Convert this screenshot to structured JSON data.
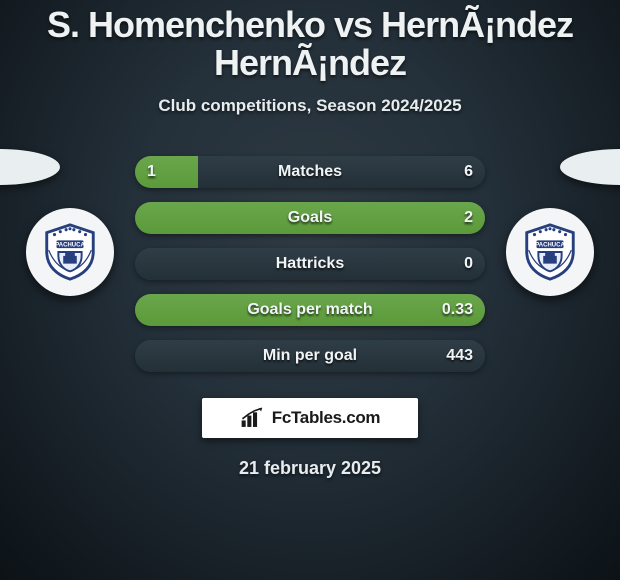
{
  "title": "S. Homenchenko vs HernÃ¡ndez HernÃ¡ndez",
  "title_fontsize": 36,
  "title_color": "#eef2f3",
  "subtitle": "Club competitions, Season 2024/2025",
  "subtitle_fontsize": 17,
  "subtitle_color": "#e7ecee",
  "date": "21 february 2025",
  "date_fontsize": 18,
  "date_color": "#e7ecee",
  "branding_text": "FcTables.com",
  "colors": {
    "bar_track": "#2f3d46",
    "bar_fill": "#5b9a3a",
    "bar_label": "#f1f4f5",
    "bar_label_fontsize": 16,
    "bar_value_fontsize": 16,
    "badge_ring": "#2a4a8a",
    "badge_inner": "#ffffff"
  },
  "bars": [
    {
      "label": "Matches",
      "left": "1",
      "right": "6",
      "left_pct": 18,
      "right_pct": 0
    },
    {
      "label": "Goals",
      "left": "",
      "right": "2",
      "left_pct": 0,
      "right_pct": 100
    },
    {
      "label": "Hattricks",
      "left": "",
      "right": "0",
      "left_pct": 0,
      "right_pct": 0
    },
    {
      "label": "Goals per match",
      "left": "",
      "right": "0.33",
      "left_pct": 0,
      "right_pct": 100
    },
    {
      "label": "Min per goal",
      "left": "",
      "right": "443",
      "left_pct": 0,
      "right_pct": 0
    }
  ]
}
